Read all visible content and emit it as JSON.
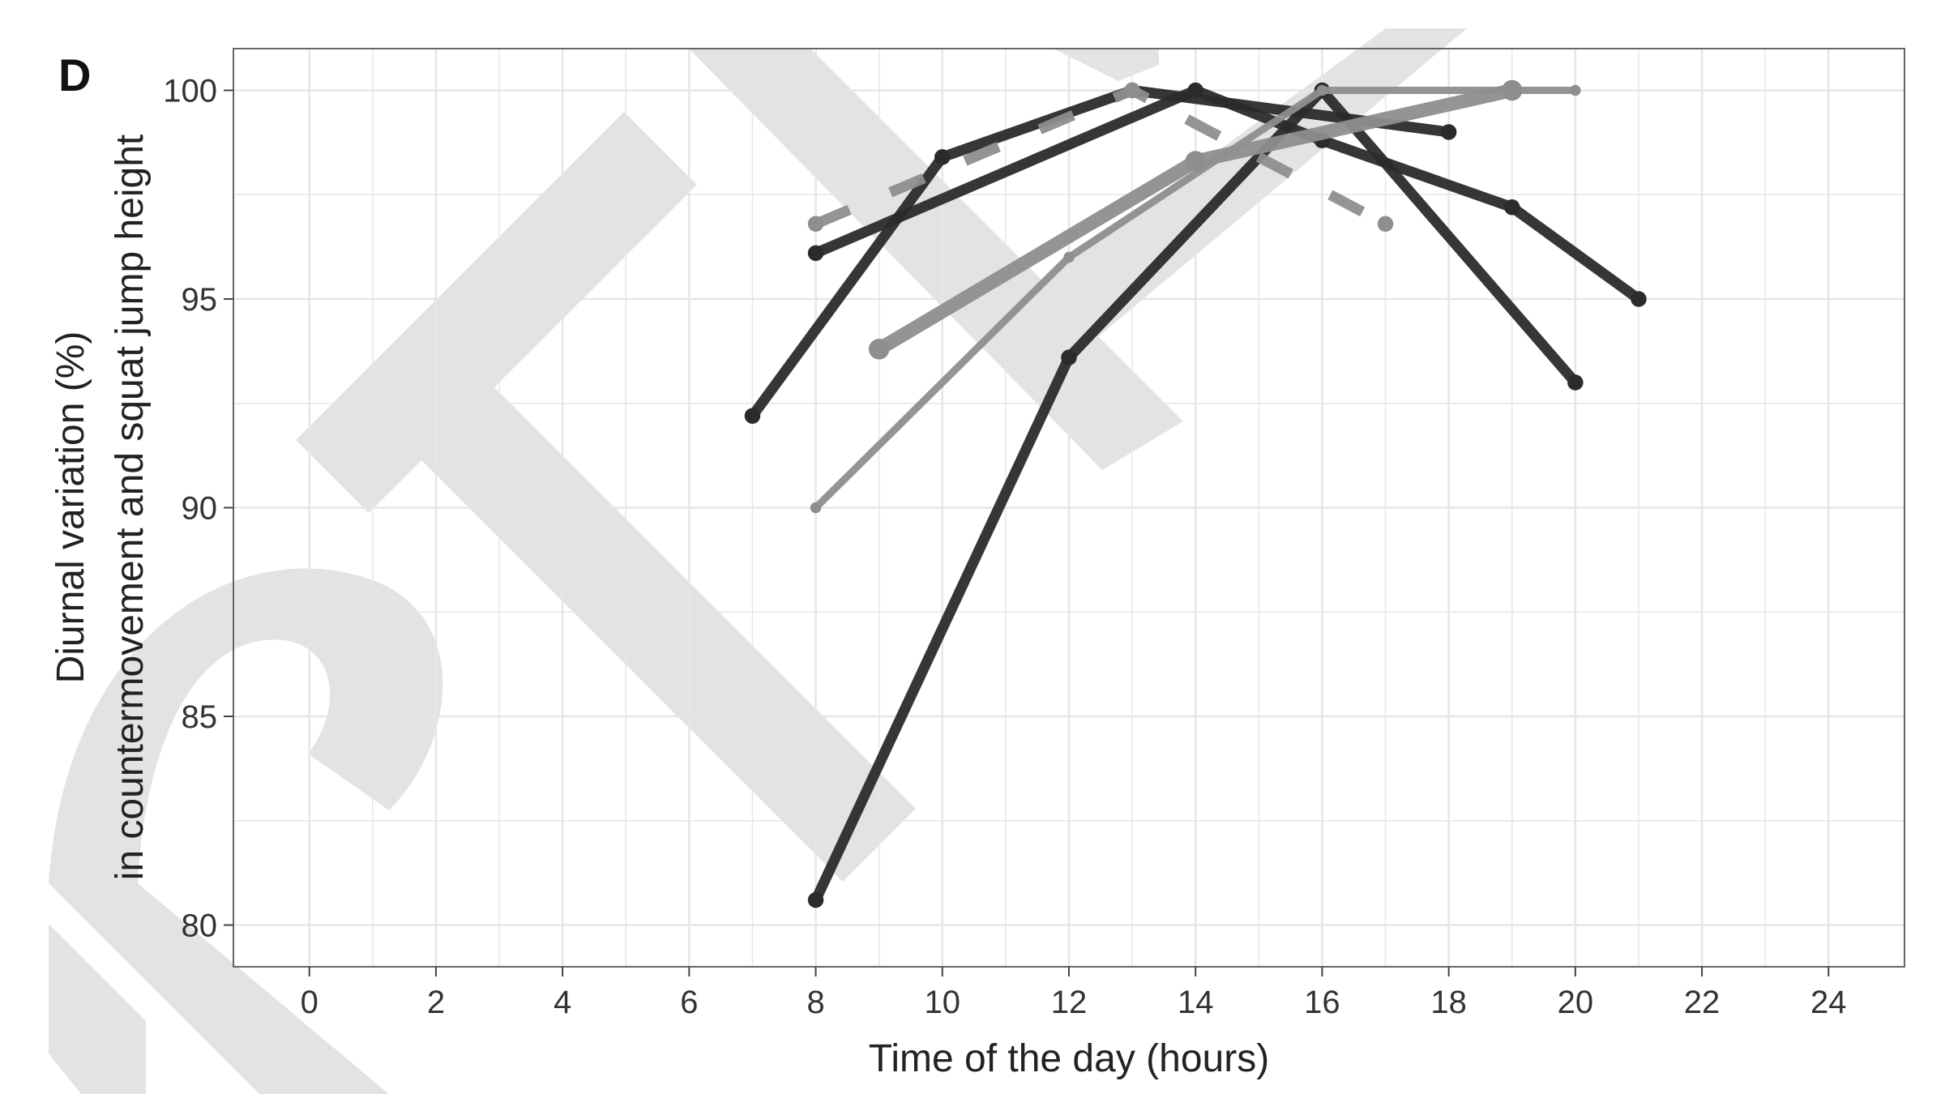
{
  "panel_label": "D",
  "chart_data": {
    "type": "line",
    "xlabel": "Time of the day (hours)",
    "ylabel_line1": "Diurnal variation (%)",
    "ylabel_line2": "in countermovement and squat jump height",
    "xlim": [
      -1.2,
      25.2
    ],
    "ylim": [
      79,
      101
    ],
    "x_ticks": [
      0,
      2,
      4,
      6,
      8,
      10,
      12,
      14,
      16,
      18,
      20,
      22,
      24
    ],
    "y_ticks": [
      80,
      85,
      90,
      95,
      100
    ],
    "grid": true,
    "legend": "none",
    "colors": {
      "dark": "#2b2b2b",
      "gray": "#8e8e8e",
      "watermark": "#e3e3e3",
      "grid": "#e6e6e6"
    },
    "series": [
      {
        "color_key": "dark",
        "style": "solid",
        "width": 13,
        "x": [
          7,
          10,
          13,
          18
        ],
        "y": [
          92.2,
          98.4,
          100,
          99.0
        ]
      },
      {
        "color_key": "dark",
        "style": "solid",
        "width": 13,
        "x": [
          8,
          14,
          16,
          19,
          21
        ],
        "y": [
          96.1,
          100,
          98.8,
          97.2,
          95.0
        ]
      },
      {
        "color_key": "dark",
        "style": "solid",
        "width": 13,
        "x": [
          8,
          12,
          16,
          20
        ],
        "y": [
          80.6,
          93.6,
          100,
          93.0
        ]
      },
      {
        "color_key": "gray",
        "style": "dashed",
        "width": 13,
        "x": [
          8,
          13,
          17
        ],
        "y": [
          96.8,
          100,
          96.8
        ]
      },
      {
        "color_key": "gray",
        "style": "solid",
        "width": 17,
        "x": [
          9,
          14,
          19
        ],
        "y": [
          93.8,
          98.3,
          100
        ]
      },
      {
        "color_key": "gray",
        "style": "solid",
        "width": 9,
        "x": [
          8,
          12,
          16,
          20
        ],
        "y": [
          90.0,
          96.0,
          100,
          100
        ]
      }
    ]
  }
}
